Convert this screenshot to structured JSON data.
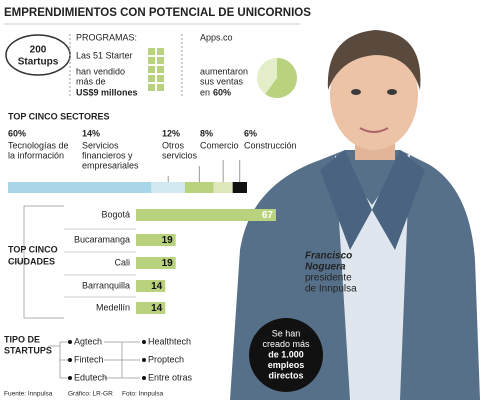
{
  "title": "EMPRENDIMIENTOS CON POTENCIAL DE UNICORNIOS",
  "badge": {
    "number": "200",
    "label": "Startups"
  },
  "programs": {
    "heading": "PROGRAMAS:",
    "lines": [
      "Las 51 Starter",
      "han vendido",
      "más de"
    ],
    "highlight": "US$9 millones"
  },
  "apps": {
    "name": "Apps.co",
    "lines": [
      "aumentaron",
      "sus ventas",
      "en"
    ],
    "share": {
      "value": 60,
      "label": "60%"
    }
  },
  "sectors": {
    "heading": "TOP CINCO SECTORES",
    "items": [
      {
        "value": 60,
        "label": "60%",
        "name": [
          "Tecnologías de",
          "la información"
        ],
        "color": "#a9d5e8"
      },
      {
        "value": 14,
        "label": "14%",
        "name": [
          "Servicios",
          "financieros y",
          "empresariales"
        ],
        "color": "#d3e9f2"
      },
      {
        "value": 12,
        "label": "12%",
        "name": [
          "Otros",
          "servicios"
        ],
        "color": "#b8d27e"
      },
      {
        "value": 8,
        "label": "8%",
        "name": [
          "Comercio"
        ],
        "color": "#dde9bd"
      },
      {
        "value": 6,
        "label": "6%",
        "name": [
          "Construcción"
        ],
        "color": "#111111"
      }
    ]
  },
  "cities": {
    "heading": [
      "TOP CINCO",
      "CIUDADES"
    ],
    "color": "#b8d27e",
    "categories": [
      "Bogotá",
      "Bucaramanga",
      "Cali",
      "Barranquilla",
      "Medellín"
    ],
    "values": [
      67,
      19,
      19,
      14,
      14
    ]
  },
  "types": {
    "heading": [
      "TIPO DE",
      "STARTUPS"
    ],
    "left": [
      "Agtech",
      "Fintech",
      "Edutech"
    ],
    "right": [
      "Healthtech",
      "Proptech",
      "Entre otras"
    ]
  },
  "person": {
    "name": [
      "Francisco",
      "Noguera"
    ],
    "role": [
      "presidente",
      "de Innpulsa"
    ]
  },
  "jobs": [
    "Se han",
    "creado más",
    "de 1.000",
    "empleos",
    "directos"
  ],
  "footer": [
    "Fuente: Innpulsa",
    "Gráfico: LR-GR",
    "Foto: Innpulsa"
  ]
}
